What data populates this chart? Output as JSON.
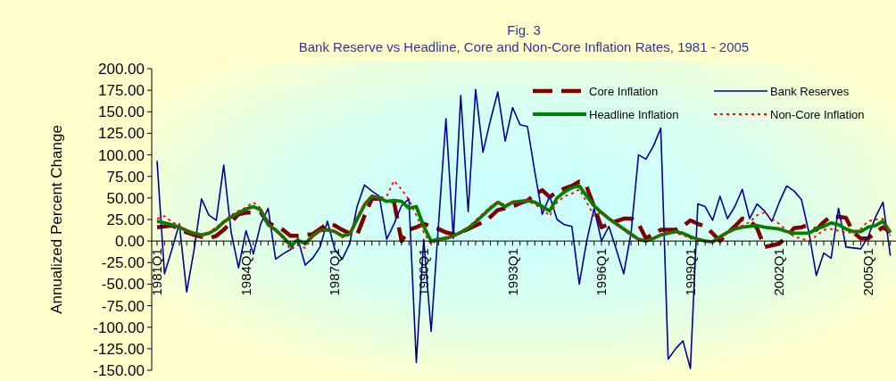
{
  "chart_data": {
    "type": "line",
    "title": "Fig. 3",
    "subtitle": "Bank Reserve vs Headline, Core and Non-Core Inflation Rates, 1981 - 2005",
    "ylabel": "Annualized Percent Change",
    "categories": [
      "1981Q1",
      null,
      null,
      null,
      null,
      null,
      null,
      null,
      null,
      null,
      null,
      null,
      "1984Q1",
      null,
      null,
      null,
      null,
      null,
      null,
      null,
      null,
      null,
      null,
      null,
      "1987Q1",
      null,
      null,
      null,
      null,
      null,
      null,
      null,
      null,
      null,
      null,
      null,
      "1990Q1",
      null,
      null,
      null,
      null,
      null,
      null,
      null,
      null,
      null,
      null,
      null,
      "1993Q1",
      null,
      null,
      null,
      null,
      null,
      null,
      null,
      null,
      null,
      null,
      null,
      "1996Q1",
      null,
      null,
      null,
      null,
      null,
      null,
      null,
      null,
      null,
      null,
      null,
      "1999Q1",
      null,
      null,
      null,
      null,
      null,
      null,
      null,
      null,
      null,
      null,
      null,
      "2002Q1",
      null,
      null,
      null,
      null,
      null,
      null,
      null,
      null,
      null,
      null,
      null,
      "2005Q1",
      null,
      null,
      null
    ],
    "ylim": [
      -150,
      200
    ],
    "yticks": [
      {
        "value": -150,
        "label": "-150.00"
      },
      {
        "value": -125,
        "label": "-125.00"
      },
      {
        "value": -100,
        "label": "-100.00"
      },
      {
        "value": -75,
        "label": "-75.00"
      },
      {
        "value": -50,
        "label": "-50.00"
      },
      {
        "value": -25,
        "label": "-25.00"
      },
      {
        "value": 0,
        "label": "0.00"
      },
      {
        "value": 25,
        "label": "25.00"
      },
      {
        "value": 50,
        "label": "50.00"
      },
      {
        "value": 75,
        "label": "75.00"
      },
      {
        "value": 100,
        "label": "100.00"
      },
      {
        "value": 125,
        "label": "125.00"
      },
      {
        "value": 150,
        "label": "150.00"
      },
      {
        "value": 175,
        "label": "175.00"
      },
      {
        "value": 200,
        "label": "200.00"
      }
    ],
    "legend": "top right",
    "series": [
      {
        "name": "Core Inflation",
        "color": "#800000",
        "line_style": "dashed",
        "values": [
          16,
          17,
          18,
          14,
          10,
          7,
          5,
          3,
          6,
          13,
          22,
          31,
          33,
          33,
          33,
          21,
          17,
          13,
          6,
          6,
          7,
          8,
          14,
          20,
          18,
          13,
          9,
          7,
          29,
          49,
          49,
          49,
          45,
          0,
          13,
          16,
          20,
          17,
          14,
          10,
          8,
          10,
          14,
          18,
          22,
          28,
          36,
          38,
          40,
          44,
          47,
          54,
          59,
          51,
          57,
          61,
          64,
          69,
          63,
          40,
          16,
          20,
          23,
          26,
          26,
          20,
          3,
          8,
          13,
          13,
          13,
          17,
          24,
          20,
          17,
          9,
          0,
          9,
          17,
          26,
          24,
          15,
          -7,
          -5,
          -3,
          5,
          15,
          16,
          19,
          13,
          22,
          29,
          28,
          27,
          10,
          3,
          3,
          10,
          16,
          10
        ]
      },
      {
        "name": "Bank Reserves",
        "color": "#000099",
        "line_style": "solid",
        "values": [
          93,
          -38,
          -10,
          20,
          -59,
          -10,
          49,
          30,
          24,
          88,
          10,
          -31,
          12,
          -15,
          20,
          38,
          -21,
          -15,
          -10,
          3,
          -28,
          -20,
          -7,
          23,
          -10,
          -21,
          -3,
          40,
          65,
          58,
          52,
          2,
          20,
          41,
          49,
          -141,
          2,
          -105,
          20,
          142,
          3,
          169,
          34,
          176,
          103,
          140,
          173,
          116,
          155,
          135,
          133,
          80,
          31,
          52,
          25,
          19,
          17,
          -50,
          0,
          38,
          0,
          17,
          -10,
          -38,
          10,
          100,
          95,
          110,
          131,
          -137,
          -125,
          -116,
          -148,
          43,
          40,
          24,
          52,
          26,
          40,
          60,
          26,
          43,
          35,
          23,
          45,
          64,
          58,
          48,
          10,
          -40,
          -14,
          -20,
          38,
          -7,
          -8,
          -9,
          5,
          28,
          45,
          -17
        ]
      },
      {
        "name": "Headline Inflation",
        "color": "#008000",
        "line_style": "solid",
        "values": [
          23,
          21,
          19,
          16,
          12,
          9,
          7,
          9,
          14,
          22,
          28,
          33,
          37,
          40,
          36,
          19,
          13,
          5,
          -5,
          1,
          -3,
          6,
          12,
          13,
          11,
          6,
          8,
          25,
          42,
          52,
          50,
          46,
          47,
          46,
          38,
          40,
          17,
          0,
          2,
          3,
          6,
          10,
          15,
          22,
          30,
          38,
          45,
          40,
          45,
          46,
          47,
          45,
          40,
          35,
          50,
          57,
          62,
          64,
          52,
          41,
          33,
          26,
          20,
          14,
          8,
          2,
          0,
          3,
          7,
          9,
          11,
          9,
          5,
          2,
          0,
          -1,
          5,
          10,
          14,
          16,
          17,
          18,
          16,
          15,
          14,
          11,
          9,
          9,
          9,
          14,
          17,
          21,
          19,
          14,
          11,
          11,
          16,
          18,
          23,
          10
        ]
      },
      {
        "name": "Non-Core Inflation",
        "color": "#ff0000",
        "line_style": "dotted",
        "values": [
          26,
          29,
          22,
          18,
          13,
          9,
          6,
          10,
          16,
          23,
          30,
          35,
          39,
          45,
          38,
          20,
          12,
          3,
          -10,
          -5,
          -8,
          5,
          12,
          14,
          12,
          4,
          8,
          28,
          44,
          52,
          50,
          52,
          70,
          60,
          48,
          30,
          10,
          -4,
          2,
          5,
          6,
          10,
          16,
          24,
          32,
          40,
          45,
          42,
          46,
          46,
          47,
          42,
          38,
          29,
          45,
          52,
          55,
          60,
          45,
          29,
          34,
          25,
          19,
          13,
          6,
          2,
          -1,
          2,
          8,
          10,
          9,
          7,
          3,
          1,
          0,
          -2,
          3,
          10,
          15,
          18,
          22,
          30,
          33,
          26,
          20,
          12,
          5,
          3,
          0,
          6,
          13,
          14,
          12,
          10,
          10,
          14,
          23,
          25,
          26,
          6
        ]
      }
    ]
  }
}
